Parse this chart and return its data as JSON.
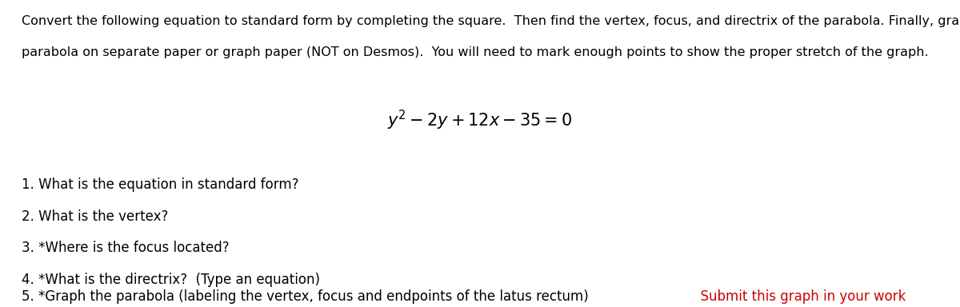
{
  "background_color": "#ffffff",
  "intro_text_line1": "Convert the following equation to standard form by completing the square.  Then find the vertex, focus, and directrix of the parabola. Finally, graph the",
  "intro_text_line2": "parabola on separate paper or graph paper (NOT on Desmos).  You will need to mark enough points to show the proper stretch of the graph.",
  "equation_latex": "$y^2 - 2y + 12x - 35 = 0$",
  "q1": "1. What is the equation in standard form?",
  "q2": "2. What is the vertex?",
  "q3": "3. *Where is the focus located?",
  "q4": "4. *What is the directrix?  (Type an equation)",
  "q5_black": "5. *Graph the parabola (labeling the vertex, focus and endpoints of the latus rectum)",
  "q5_red": "  Submit this graph in your work",
  "text_color": "#000000",
  "red_color": "#cc0000",
  "intro_fontsize": 11.5,
  "question_fontsize": 12,
  "equation_fontsize": 15
}
